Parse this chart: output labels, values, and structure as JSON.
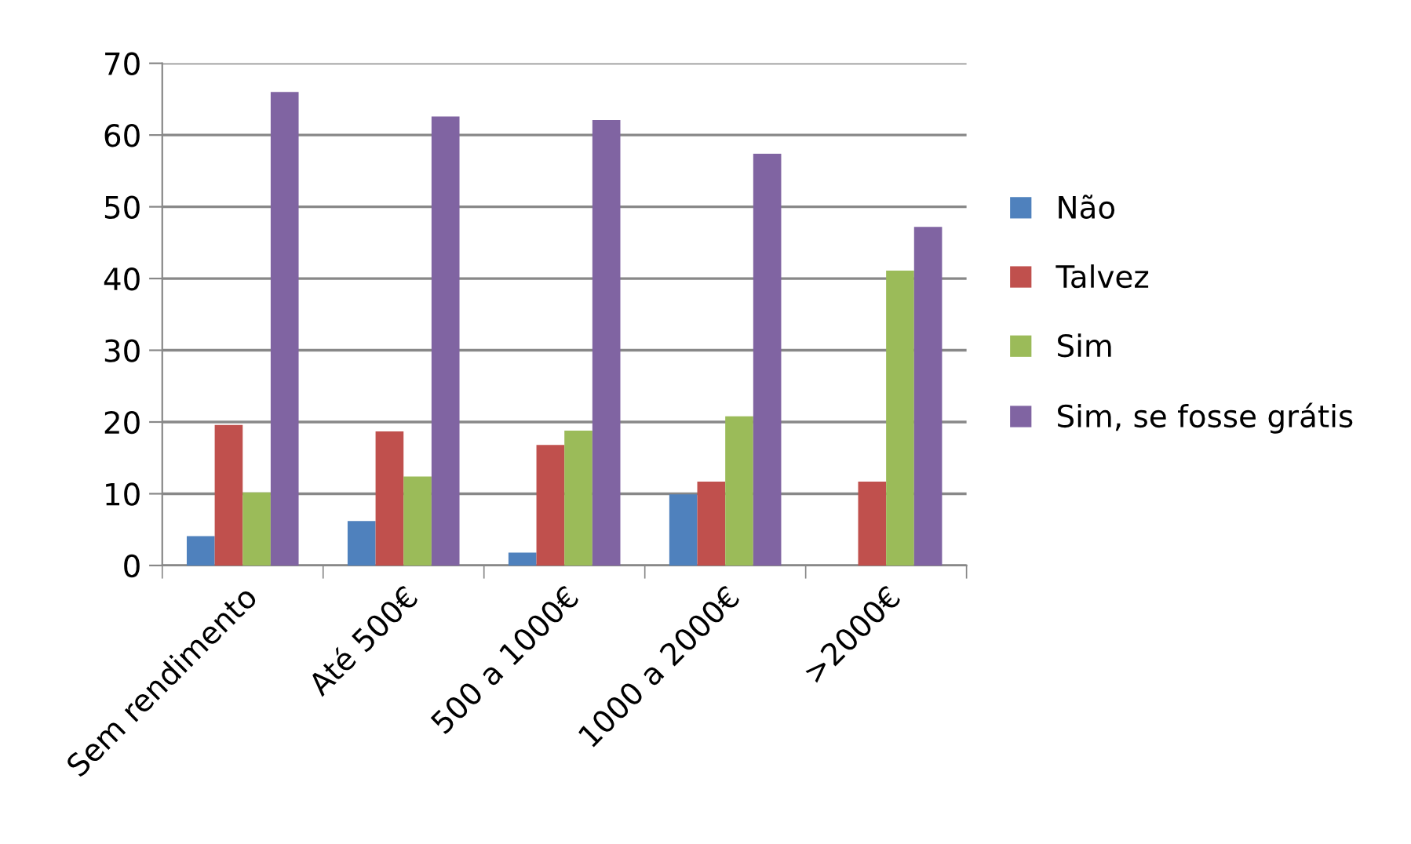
{
  "chart_data": {
    "type": "bar",
    "categories": [
      "Sem rendimento",
      "Até 500€",
      "500 a 1000€",
      "1000 a 2000€",
      ">2000€"
    ],
    "series": [
      {
        "name": "Não",
        "color": "#4f81bd",
        "values": [
          4.1,
          6.2,
          1.8,
          9.9,
          0
        ]
      },
      {
        "name": "Talvez",
        "color": "#c0504d",
        "values": [
          19.6,
          18.7,
          16.8,
          11.7,
          11.7
        ]
      },
      {
        "name": "Sim",
        "color": "#9bbb59",
        "values": [
          10.2,
          12.4,
          18.8,
          20.8,
          41.1
        ]
      },
      {
        "name": "Sim, se fosse grátis",
        "color": "#8064a2",
        "values": [
          66.0,
          62.6,
          62.1,
          57.4,
          47.2
        ]
      }
    ],
    "ylim": [
      0,
      70
    ],
    "yticks": [
      0,
      10,
      20,
      30,
      40,
      50,
      60,
      70
    ],
    "grid": "y",
    "legend": "right"
  }
}
